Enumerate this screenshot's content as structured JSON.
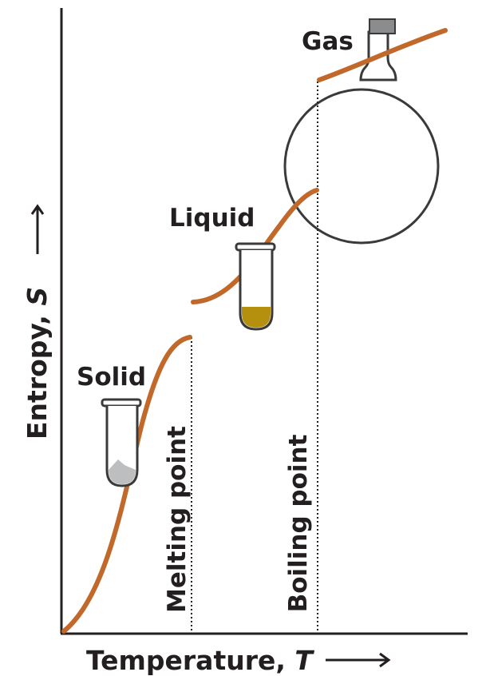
{
  "axes": {
    "y_label": {
      "text": "Entropy,",
      "variable": "S"
    },
    "x_label": {
      "text": "Temperature,",
      "variable": "T"
    }
  },
  "phases": [
    "Solid",
    "Liquid",
    "Gas"
  ],
  "transitions": [
    "Melting point",
    "Boiling point"
  ]
}
